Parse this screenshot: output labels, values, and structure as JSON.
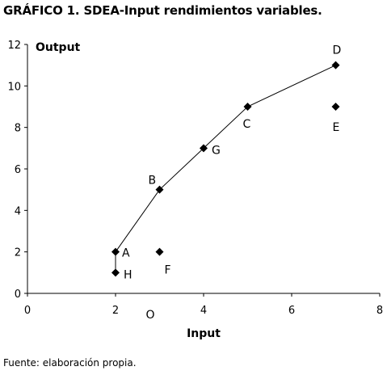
{
  "title": "GRÁFICO 1. SDEA-Input rendimientos variables.",
  "source": "Fuente: elaboración propia.",
  "chart_data": {
    "type": "scatter",
    "xlabel": "Input",
    "ylabel": "Output",
    "xlim": [
      0,
      8
    ],
    "ylim": [
      0,
      12
    ],
    "xticks": [
      0,
      2,
      4,
      6,
      8
    ],
    "yticks": [
      0,
      2,
      4,
      6,
      8,
      10,
      12
    ],
    "grid": false,
    "points": [
      {
        "label": "A",
        "x": 2,
        "y": 2
      },
      {
        "label": "B",
        "x": 3,
        "y": 5
      },
      {
        "label": "C",
        "x": 5,
        "y": 9
      },
      {
        "label": "D",
        "x": 7,
        "y": 11
      },
      {
        "label": "E",
        "x": 7,
        "y": 9
      },
      {
        "label": "F",
        "x": 3,
        "y": 2
      },
      {
        "label": "G",
        "x": 4,
        "y": 7
      },
      {
        "label": "H",
        "x": 2,
        "y": 1
      }
    ],
    "frontier": [
      "H",
      "A",
      "B",
      "G",
      "C",
      "D"
    ],
    "origin_label": "O"
  }
}
